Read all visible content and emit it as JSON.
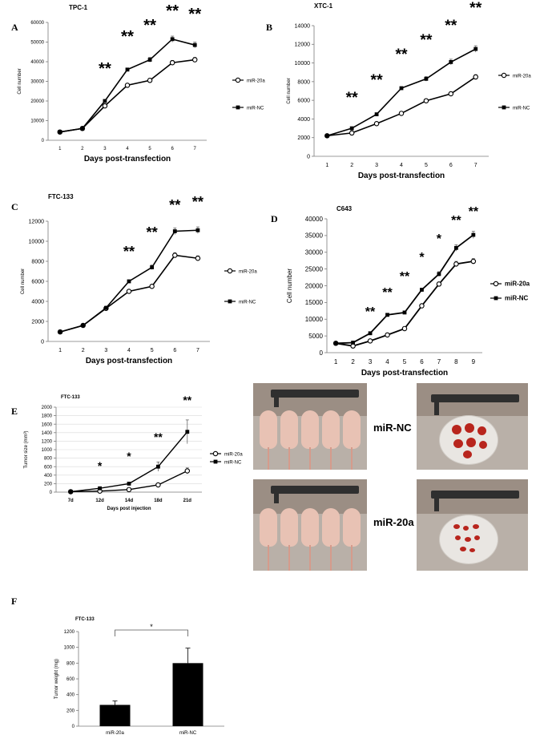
{
  "figure": {
    "panels": [
      "A",
      "B",
      "C",
      "D",
      "E",
      "F"
    ],
    "photo_labels": [
      "miR-NC",
      "miR-20a"
    ]
  },
  "chart_data": [
    {
      "id": "A",
      "type": "line",
      "title": "TPC-1",
      "xlabel": "Days post-transfection",
      "ylabel": "Cell number",
      "x": [
        1,
        2,
        3,
        4,
        5,
        6,
        7
      ],
      "ylim": [
        0,
        60000
      ],
      "yticks": [
        0,
        10000,
        20000,
        30000,
        40000,
        50000,
        60000
      ],
      "series": [
        {
          "name": "miR-20a",
          "marker": "open-circle",
          "values": [
            4200,
            6000,
            17500,
            28000,
            30500,
            39500,
            41000
          ]
        },
        {
          "name": "miR-NC",
          "marker": "filled-square",
          "values": [
            4200,
            6000,
            20000,
            36000,
            41000,
            51500,
            48500
          ]
        }
      ],
      "significance": [
        {
          "x": 3,
          "label": "**"
        },
        {
          "x": 4,
          "label": "**"
        },
        {
          "x": 5,
          "label": "**"
        },
        {
          "x": 6,
          "label": "**"
        },
        {
          "x": 7,
          "label": "**"
        }
      ],
      "legend": "right"
    },
    {
      "id": "B",
      "type": "line",
      "title": "XTC-1",
      "xlabel": "Days post-transfection",
      "ylabel": "Cell number",
      "x": [
        1,
        2,
        3,
        4,
        5,
        6,
        7
      ],
      "ylim": [
        0,
        14000
      ],
      "yticks": [
        0,
        2000,
        4000,
        6000,
        8000,
        10000,
        12000,
        14000
      ],
      "series": [
        {
          "name": "miR-20a",
          "marker": "open-circle",
          "values": [
            2200,
            2500,
            3500,
            4600,
            5950,
            6700,
            8500
          ]
        },
        {
          "name": "miR-NC",
          "marker": "filled-square",
          "values": [
            2200,
            3000,
            4500,
            7300,
            8300,
            10100,
            11500
          ]
        }
      ],
      "significance": [
        {
          "x": 2,
          "label": "**"
        },
        {
          "x": 3,
          "label": "**"
        },
        {
          "x": 4,
          "label": "**"
        },
        {
          "x": 5,
          "label": "**"
        },
        {
          "x": 6,
          "label": "**"
        },
        {
          "x": 7,
          "label": "**"
        }
      ],
      "legend": "right"
    },
    {
      "id": "C",
      "type": "line",
      "title": "FTC-133",
      "xlabel": "Days post-transfection",
      "ylabel": "Cell number",
      "x": [
        1,
        2,
        3,
        4,
        5,
        6,
        7
      ],
      "ylim": [
        0,
        12000
      ],
      "yticks": [
        0,
        2000,
        4000,
        6000,
        8000,
        10000,
        12000
      ],
      "series": [
        {
          "name": "miR-20a",
          "marker": "open-circle",
          "values": [
            950,
            1600,
            3300,
            5000,
            5500,
            8600,
            8300
          ]
        },
        {
          "name": "miR-NC",
          "marker": "filled-square",
          "values": [
            950,
            1600,
            3350,
            6000,
            7400,
            11000,
            11100
          ]
        }
      ],
      "significance": [
        {
          "x": 4,
          "label": "**"
        },
        {
          "x": 5,
          "label": "**"
        },
        {
          "x": 6,
          "label": "**"
        },
        {
          "x": 7,
          "label": "**"
        }
      ],
      "legend": "right"
    },
    {
      "id": "D",
      "type": "line",
      "title": "C643",
      "xlabel": "Days post-transfection",
      "ylabel": "Cell number",
      "x": [
        1,
        2,
        3,
        4,
        5,
        6,
        7,
        8,
        9
      ],
      "ylim": [
        0,
        40000
      ],
      "yticks": [
        0,
        5000,
        10000,
        15000,
        20000,
        25000,
        30000,
        35000,
        40000
      ],
      "series": [
        {
          "name": "miR-20a",
          "marker": "open-circle",
          "values": [
            2800,
            2000,
            3500,
            5300,
            7200,
            14000,
            20500,
            26500,
            27300
          ]
        },
        {
          "name": "miR-NC",
          "marker": "filled-square",
          "values": [
            2800,
            3000,
            5800,
            11300,
            12000,
            18800,
            23500,
            31300,
            35200
          ]
        }
      ],
      "significance": [
        {
          "x": 3,
          "label": "**"
        },
        {
          "x": 4,
          "label": "**"
        },
        {
          "x": 5,
          "label": "**"
        },
        {
          "x": 6,
          "label": "*"
        },
        {
          "x": 7,
          "label": "*"
        },
        {
          "x": 8,
          "label": "**"
        },
        {
          "x": 9,
          "label": "**"
        }
      ],
      "legend": "right"
    },
    {
      "id": "E",
      "type": "line",
      "title": "FTC-133",
      "xlabel": "Days post injection",
      "ylabel": "Tumor size (mm³)",
      "categories": [
        "7d",
        "12d",
        "14d",
        "18d",
        "21d"
      ],
      "ylim": [
        0,
        2000
      ],
      "yticks": [
        0,
        200,
        400,
        600,
        800,
        1000,
        1200,
        1400,
        1600,
        1800,
        2000
      ],
      "series": [
        {
          "name": "miR-20a",
          "marker": "open-circle",
          "values": [
            10,
            25,
            60,
            170,
            500
          ]
        },
        {
          "name": "miR-NC",
          "marker": "filled-square",
          "values": [
            10,
            90,
            200,
            600,
            1420
          ]
        }
      ],
      "significance": [
        {
          "x": "12d",
          "label": "*"
        },
        {
          "x": "14d",
          "label": "*"
        },
        {
          "x": "18d",
          "label": "**"
        },
        {
          "x": "21d",
          "label": "**"
        }
      ],
      "legend": "right"
    },
    {
      "id": "F",
      "type": "bar",
      "title": "FTC-133",
      "xlabel": "",
      "ylabel": "Tumor weight (mg)",
      "categories": [
        "miR-20a",
        "miR-NC"
      ],
      "values": [
        270,
        800
      ],
      "ylim": [
        0,
        1200
      ],
      "yticks": [
        0,
        200,
        400,
        600,
        800,
        1000,
        1200
      ],
      "significance": [
        {
          "label": "*"
        }
      ]
    }
  ]
}
